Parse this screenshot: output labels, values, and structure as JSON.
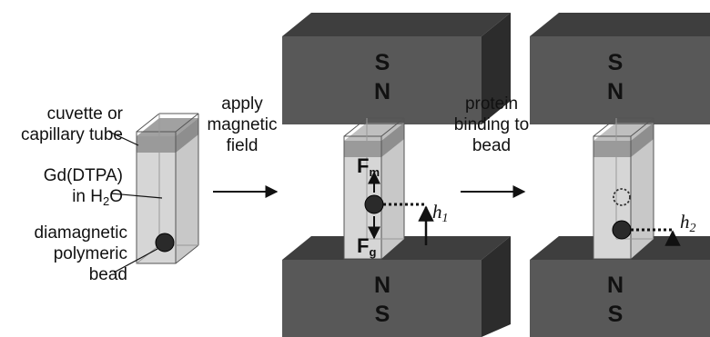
{
  "labels": {
    "cuvette_line1": "cuvette or",
    "cuvette_line2": "capillary tube",
    "gd_line1": "Gd(DTPA)",
    "gd_line2_prefix": "in H",
    "gd_line2_sub": "2",
    "gd_line2_suffix": "O",
    "bead_line1": "diamagnetic",
    "bead_line2": "polymeric",
    "bead_line3": "bead"
  },
  "steps": {
    "step1_line1": "apply",
    "step1_line2": "magnetic",
    "step1_line3": "field",
    "step2_line1": "protein",
    "step2_line2": "binding to",
    "step2_line3": "bead"
  },
  "magnets": {
    "top_upper": "S",
    "top_lower": "N",
    "bottom_upper": "N",
    "bottom_lower": "S"
  },
  "forces": {
    "magnetic_letter": "F",
    "magnetic_sub": "m",
    "gravity_letter": "F",
    "gravity_sub": "g"
  },
  "heights": {
    "h1_letter": "h",
    "h1_sub": "1",
    "h2_letter": "h",
    "h2_sub": "2"
  },
  "colors": {
    "magnet_front": "#585858",
    "magnet_top": "#3e3e3e",
    "magnet_side": "#2c2c2c",
    "liquid": "#d4d4d4",
    "bead": "#2a2a2a"
  }
}
